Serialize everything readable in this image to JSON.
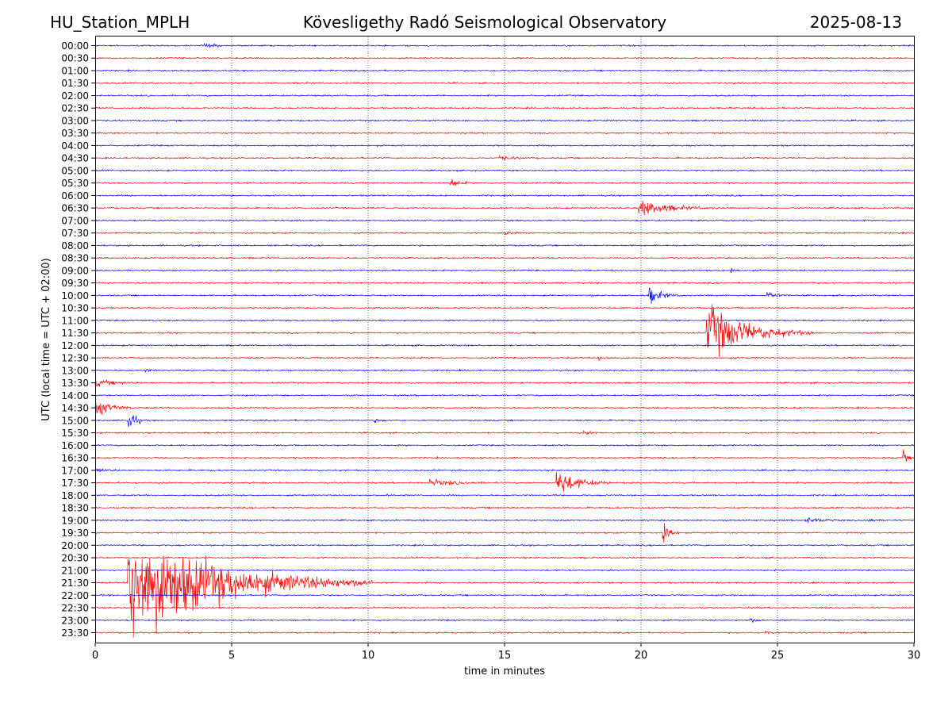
{
  "header": {
    "station": "HU_Station_MPLH",
    "title": "Kövesligethy Radó Seismological Observatory",
    "date": "2025-08-13"
  },
  "chart_data": {
    "type": "line",
    "subtype": "helicorder",
    "xlabel": "time in minutes",
    "ylabel": "UTC (local time = UTC + 02:00)",
    "xlim": [
      0,
      30
    ],
    "x_ticks": [
      0,
      5,
      10,
      15,
      20,
      25,
      30
    ],
    "grid": "vertical dotted lines at 5-minute intervals",
    "colors": {
      "even_hour_trace": "#0000ff",
      "half_hour_trace": "#ff0000"
    },
    "rows": [
      "00:00",
      "00:30",
      "01:00",
      "01:30",
      "02:00",
      "02:30",
      "03:00",
      "03:30",
      "04:00",
      "04:30",
      "05:00",
      "05:30",
      "06:00",
      "06:30",
      "07:00",
      "07:30",
      "08:00",
      "08:30",
      "09:00",
      "09:30",
      "10:00",
      "10:30",
      "11:00",
      "11:30",
      "12:00",
      "12:30",
      "13:00",
      "13:30",
      "14:00",
      "14:30",
      "15:00",
      "15:30",
      "16:00",
      "16:30",
      "17:00",
      "17:30",
      "18:00",
      "18:30",
      "19:00",
      "19:30",
      "20:00",
      "20:30",
      "21:00",
      "21:30",
      "22:00",
      "22:30",
      "23:00",
      "23:30"
    ],
    "events": [
      {
        "row": "00:00",
        "start_min": 4.0,
        "duration_min": 1.0,
        "amplitude": 0.2
      },
      {
        "row": "04:30",
        "start_min": 14.8,
        "duration_min": 1.5,
        "amplitude": 0.18
      },
      {
        "row": "05:30",
        "start_min": 13.0,
        "duration_min": 0.8,
        "amplitude": 0.5
      },
      {
        "row": "06:30",
        "start_min": 19.9,
        "duration_min": 3.0,
        "amplitude": 0.7
      },
      {
        "row": "07:30",
        "start_min": 15.0,
        "duration_min": 0.8,
        "amplitude": 0.15
      },
      {
        "row": "09:00",
        "start_min": 23.3,
        "duration_min": 0.4,
        "amplitude": 0.3
      },
      {
        "row": "10:00",
        "start_min": 20.3,
        "duration_min": 1.2,
        "amplitude": 0.75
      },
      {
        "row": "10:00",
        "start_min": 24.6,
        "duration_min": 0.9,
        "amplitude": 0.35
      },
      {
        "row": "11:30",
        "start_min": 22.4,
        "duration_min": 4.0,
        "amplitude": 2.4
      },
      {
        "row": "12:30",
        "start_min": 18.4,
        "duration_min": 1.0,
        "amplitude": 0.2
      },
      {
        "row": "13:00",
        "start_min": 1.8,
        "duration_min": 0.6,
        "amplitude": 0.15
      },
      {
        "row": "13:30",
        "start_min": 0.0,
        "duration_min": 1.8,
        "amplitude": 0.3
      },
      {
        "row": "14:30",
        "start_min": 0.0,
        "duration_min": 1.5,
        "amplitude": 0.85
      },
      {
        "row": "15:00",
        "start_min": 1.2,
        "duration_min": 0.6,
        "amplitude": 1.5
      },
      {
        "row": "15:00",
        "start_min": 10.2,
        "duration_min": 0.8,
        "amplitude": 0.15
      },
      {
        "row": "15:30",
        "start_min": 17.9,
        "duration_min": 0.9,
        "amplitude": 0.12
      },
      {
        "row": "16:30",
        "start_min": 29.6,
        "duration_min": 0.4,
        "amplitude": 0.6
      },
      {
        "row": "17:00",
        "start_min": 0.0,
        "duration_min": 1.0,
        "amplitude": 0.2
      },
      {
        "row": "17:30",
        "start_min": 12.2,
        "duration_min": 2.5,
        "amplitude": 0.28
      },
      {
        "row": "17:30",
        "start_min": 16.9,
        "duration_min": 2.0,
        "amplitude": 1.2
      },
      {
        "row": "18:00",
        "start_min": 10.7,
        "duration_min": 0.5,
        "amplitude": 0.12
      },
      {
        "row": "19:00",
        "start_min": 26.0,
        "duration_min": 1.5,
        "amplitude": 0.25
      },
      {
        "row": "19:00",
        "start_min": 28.3,
        "duration_min": 0.8,
        "amplitude": 0.15
      },
      {
        "row": "19:30",
        "start_min": 20.8,
        "duration_min": 0.6,
        "amplitude": 1.6
      },
      {
        "row": "21:30",
        "start_min": 1.2,
        "duration_min": 9.0,
        "amplitude": 5.0
      },
      {
        "row": "23:00",
        "start_min": 24.0,
        "duration_min": 0.8,
        "amplitude": 0.15
      },
      {
        "row": "23:30",
        "start_min": 24.5,
        "duration_min": 1.0,
        "amplitude": 0.15
      }
    ]
  }
}
